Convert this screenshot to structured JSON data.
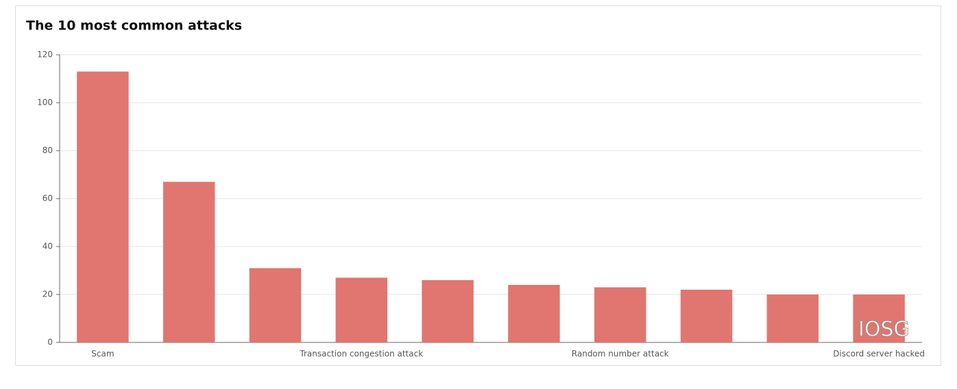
{
  "chart_data": {
    "type": "bar",
    "title": "The 10 most common attacks",
    "categories": [
      "Scam",
      null,
      null,
      "Transaction congestion attack",
      null,
      null,
      "Random number attack",
      null,
      null,
      "Discord server hacked"
    ],
    "values": [
      113,
      67,
      31,
      27,
      26,
      24,
      23,
      22,
      20,
      20
    ],
    "color": "#e0766f",
    "ylim": [
      0,
      120
    ],
    "yticks": [
      0,
      20,
      40,
      60,
      80,
      100,
      120
    ],
    "grid": true,
    "watermark": "IOSG"
  }
}
